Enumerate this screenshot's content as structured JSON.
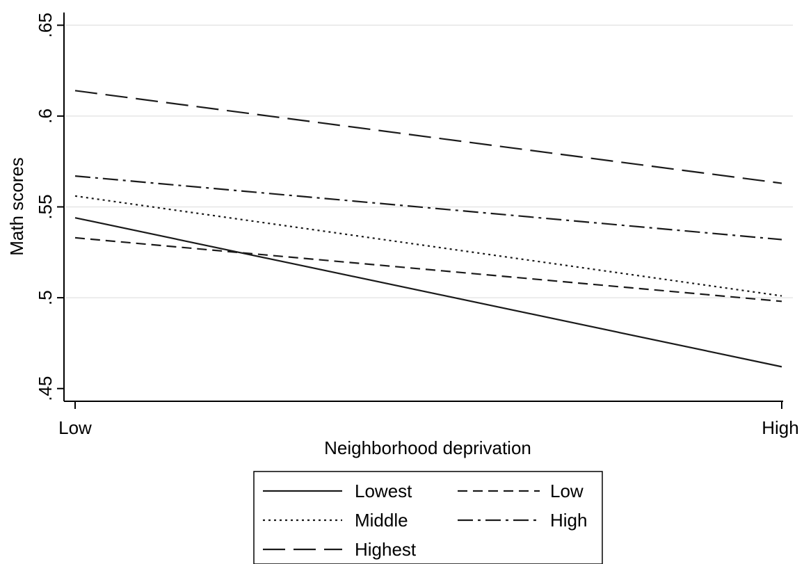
{
  "chart_data": {
    "type": "line",
    "title": "",
    "xlabel": "Neighborhood deprivation",
    "ylabel": "Math scores",
    "x_categories": [
      "Low",
      "High"
    ],
    "ylim": [
      0.443,
      0.657
    ],
    "yticks": [
      {
        "value": 0.45,
        "label": ".45"
      },
      {
        "value": 0.5,
        "label": ".5"
      },
      {
        "value": 0.55,
        "label": ".55"
      },
      {
        "value": 0.6,
        "label": ".6"
      },
      {
        "value": 0.65,
        "label": ".65"
      }
    ],
    "grid": true,
    "legend_position": "bottom",
    "series": [
      {
        "name": "Lowest",
        "style": "solid",
        "values": [
          0.544,
          0.462
        ]
      },
      {
        "name": "Low",
        "style": "short-dash",
        "values": [
          0.533,
          0.498
        ]
      },
      {
        "name": "Middle",
        "style": "dot",
        "values": [
          0.556,
          0.501
        ]
      },
      {
        "name": "High",
        "style": "dash-dot",
        "values": [
          0.567,
          0.532
        ]
      },
      {
        "name": "Highest",
        "style": "long-dash",
        "values": [
          0.614,
          0.563
        ]
      }
    ]
  }
}
